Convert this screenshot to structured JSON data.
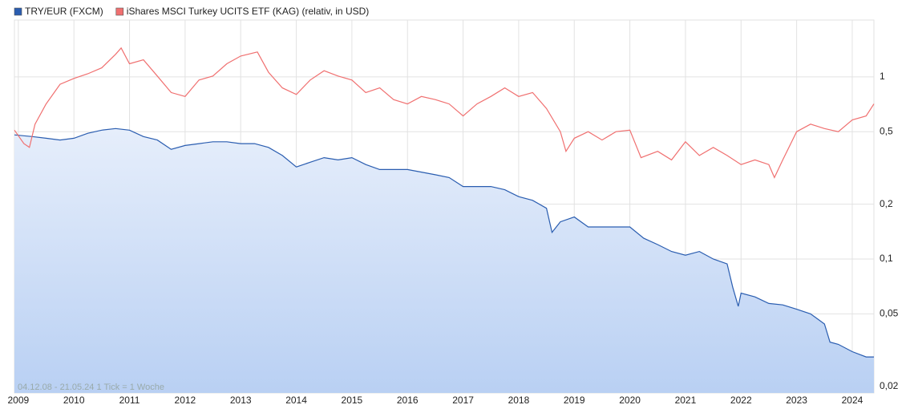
{
  "chart_data": {
    "type": "line",
    "log_y": true,
    "grid": true,
    "legend": "top-left",
    "footnote": "04.12.08 - 21.05.24   1 Tick = 1 Woche",
    "xlim": [
      2008.93,
      2024.39
    ],
    "xticks": [
      2009,
      2010,
      2011,
      2012,
      2013,
      2014,
      2015,
      2016,
      2017,
      2018,
      2019,
      2020,
      2021,
      2022,
      2023,
      2024
    ],
    "ylim": [
      0.0184,
      2.05
    ],
    "yticks": [
      {
        "value": 1,
        "label": "1"
      },
      {
        "value": 0.5,
        "label": "0,5"
      },
      {
        "value": 0.2,
        "label": "0,2"
      },
      {
        "value": 0.1,
        "label": "0,1"
      },
      {
        "value": 0.05,
        "label": "0,05"
      },
      {
        "value": 0.02,
        "label": "0,02"
      }
    ],
    "series": [
      {
        "name": "TRY/EUR (FXCM)",
        "color": "#2a5db0",
        "area": true,
        "x": [
          2008.93,
          2009.25,
          2009.5,
          2009.75,
          2010.0,
          2010.25,
          2010.5,
          2010.75,
          2011.0,
          2011.25,
          2011.5,
          2011.75,
          2012.0,
          2012.25,
          2012.5,
          2012.75,
          2013.0,
          2013.25,
          2013.5,
          2013.75,
          2014.0,
          2014.25,
          2014.5,
          2014.75,
          2015.0,
          2015.25,
          2015.5,
          2015.75,
          2016.0,
          2016.25,
          2016.5,
          2016.75,
          2017.0,
          2017.25,
          2017.5,
          2017.75,
          2018.0,
          2018.25,
          2018.5,
          2018.6,
          2018.75,
          2019.0,
          2019.25,
          2019.5,
          2019.75,
          2020.0,
          2020.25,
          2020.5,
          2020.75,
          2021.0,
          2021.25,
          2021.5,
          2021.75,
          2021.85,
          2021.95,
          2022.0,
          2022.25,
          2022.5,
          2022.75,
          2023.0,
          2023.25,
          2023.5,
          2023.6,
          2023.75,
          2024.0,
          2024.25,
          2024.39
        ],
        "values": [
          0.48,
          0.47,
          0.46,
          0.45,
          0.46,
          0.49,
          0.51,
          0.52,
          0.51,
          0.47,
          0.45,
          0.4,
          0.42,
          0.43,
          0.44,
          0.44,
          0.43,
          0.43,
          0.41,
          0.37,
          0.32,
          0.34,
          0.36,
          0.35,
          0.36,
          0.33,
          0.31,
          0.31,
          0.31,
          0.3,
          0.29,
          0.28,
          0.25,
          0.25,
          0.25,
          0.24,
          0.22,
          0.21,
          0.19,
          0.14,
          0.16,
          0.17,
          0.15,
          0.15,
          0.15,
          0.15,
          0.13,
          0.12,
          0.11,
          0.105,
          0.11,
          0.1,
          0.094,
          0.07,
          0.055,
          0.065,
          0.062,
          0.057,
          0.056,
          0.053,
          0.05,
          0.044,
          0.035,
          0.034,
          0.031,
          0.029,
          0.029
        ]
      },
      {
        "name": "iShares MSCI Turkey UCITS ETF (KAG) (relativ, in USD)",
        "color": "#f07070",
        "x": [
          2008.93,
          2009.1,
          2009.2,
          2009.3,
          2009.5,
          2009.75,
          2010.0,
          2010.25,
          2010.5,
          2010.75,
          2010.85,
          2011.0,
          2011.25,
          2011.5,
          2011.75,
          2012.0,
          2012.25,
          2012.5,
          2012.75,
          2013.0,
          2013.3,
          2013.5,
          2013.75,
          2014.0,
          2014.25,
          2014.5,
          2014.75,
          2015.0,
          2015.25,
          2015.5,
          2015.75,
          2016.0,
          2016.25,
          2016.5,
          2016.75,
          2017.0,
          2017.25,
          2017.5,
          2017.75,
          2018.0,
          2018.25,
          2018.5,
          2018.75,
          2018.85,
          2019.0,
          2019.25,
          2019.5,
          2019.75,
          2020.0,
          2020.2,
          2020.5,
          2020.75,
          2021.0,
          2021.25,
          2021.5,
          2021.75,
          2022.0,
          2022.25,
          2022.5,
          2022.6,
          2022.75,
          2023.0,
          2023.25,
          2023.5,
          2023.75,
          2024.0,
          2024.25,
          2024.39
        ],
        "values": [
          0.51,
          0.43,
          0.41,
          0.55,
          0.71,
          0.91,
          0.98,
          1.04,
          1.12,
          1.33,
          1.44,
          1.18,
          1.24,
          1.01,
          0.82,
          0.78,
          0.96,
          1.01,
          1.18,
          1.3,
          1.37,
          1.06,
          0.87,
          0.8,
          0.96,
          1.08,
          1.01,
          0.96,
          0.82,
          0.87,
          0.75,
          0.71,
          0.78,
          0.75,
          0.71,
          0.61,
          0.71,
          0.78,
          0.87,
          0.78,
          0.82,
          0.67,
          0.5,
          0.39,
          0.46,
          0.5,
          0.45,
          0.5,
          0.51,
          0.36,
          0.39,
          0.35,
          0.44,
          0.37,
          0.41,
          0.37,
          0.33,
          0.35,
          0.33,
          0.28,
          0.35,
          0.5,
          0.55,
          0.52,
          0.5,
          0.58,
          0.61,
          0.71
        ]
      }
    ]
  }
}
